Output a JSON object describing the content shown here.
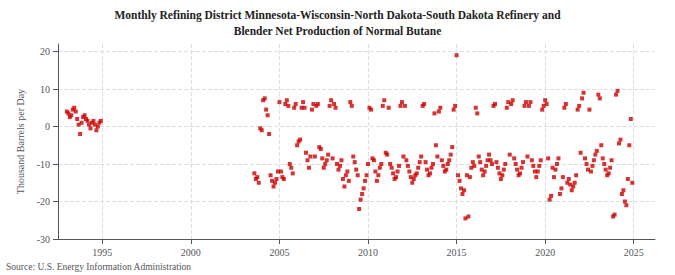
{
  "chart_data": {
    "type": "scatter",
    "title": "Monthly Refining District Minnesota-Wisconsin-North Dakota-South Dakota Refinery and",
    "subtitle": "Blender Net Production of Normal Butane",
    "y_label": "Thousand Barrels per Day",
    "annotations": [
      "Source: U.S. Energy Information Administration"
    ],
    "color": "#cc0000",
    "marker": "square",
    "grid": true,
    "xlim": [
      1992.5,
      2026.2
    ],
    "xticks": [
      1995,
      2000,
      2005,
      2010,
      2015,
      2020,
      2025
    ],
    "ylim": [
      -30,
      22
    ],
    "yticks": [
      -30,
      -20,
      -10,
      0,
      10,
      20
    ],
    "x": [
      1993.0,
      1993.083,
      1993.167,
      1993.25,
      1993.333,
      1993.417,
      1993.5,
      1993.583,
      1993.667,
      1993.75,
      1993.833,
      1993.917,
      1994.0,
      1994.083,
      1994.167,
      1994.25,
      1994.333,
      1994.417,
      1994.5,
      1994.583,
      1994.667,
      1994.75,
      1994.833,
      1994.917,
      2003.583,
      2003.667,
      2003.75,
      2003.833,
      2003.917,
      2004.0,
      2004.083,
      2004.167,
      2004.25,
      2004.333,
      2004.417,
      2004.5,
      2004.583,
      2004.667,
      2004.75,
      2004.833,
      2004.917,
      2005.0,
      2005.083,
      2005.167,
      2005.25,
      2005.333,
      2005.417,
      2005.5,
      2005.583,
      2005.667,
      2005.75,
      2005.833,
      2005.917,
      2006.0,
      2006.083,
      2006.167,
      2006.25,
      2006.333,
      2006.417,
      2006.5,
      2006.583,
      2006.667,
      2006.75,
      2006.833,
      2006.917,
      2007.0,
      2007.083,
      2007.167,
      2007.25,
      2007.333,
      2007.417,
      2007.5,
      2007.583,
      2007.667,
      2007.75,
      2007.833,
      2007.917,
      2008.0,
      2008.083,
      2008.167,
      2008.25,
      2008.333,
      2008.417,
      2008.5,
      2008.583,
      2008.667,
      2008.75,
      2008.833,
      2008.917,
      2009.0,
      2009.083,
      2009.167,
      2009.25,
      2009.333,
      2009.417,
      2009.5,
      2009.583,
      2009.667,
      2009.75,
      2009.833,
      2009.917,
      2010.0,
      2010.083,
      2010.167,
      2010.25,
      2010.333,
      2010.417,
      2010.5,
      2010.583,
      2010.667,
      2010.75,
      2010.833,
      2010.917,
      2011.0,
      2011.083,
      2011.167,
      2011.25,
      2011.333,
      2011.417,
      2011.5,
      2011.583,
      2011.667,
      2011.75,
      2011.833,
      2011.917,
      2012.0,
      2012.083,
      2012.167,
      2012.25,
      2012.333,
      2012.417,
      2012.5,
      2012.583,
      2012.667,
      2012.75,
      2012.833,
      2012.917,
      2013.0,
      2013.083,
      2013.167,
      2013.25,
      2013.333,
      2013.417,
      2013.5,
      2013.583,
      2013.667,
      2013.75,
      2013.833,
      2013.917,
      2014.0,
      2014.083,
      2014.167,
      2014.25,
      2014.333,
      2014.417,
      2014.5,
      2014.583,
      2014.667,
      2014.75,
      2014.833,
      2014.917,
      2015.0,
      2015.083,
      2015.167,
      2015.25,
      2015.333,
      2015.417,
      2015.5,
      2015.583,
      2015.667,
      2015.75,
      2015.833,
      2015.917,
      2016.0,
      2016.083,
      2016.167,
      2016.25,
      2016.333,
      2016.417,
      2016.5,
      2016.583,
      2016.667,
      2016.75,
      2016.833,
      2016.917,
      2017.0,
      2017.083,
      2017.167,
      2017.25,
      2017.333,
      2017.417,
      2017.5,
      2017.583,
      2017.667,
      2017.75,
      2017.833,
      2017.917,
      2018.0,
      2018.083,
      2018.167,
      2018.25,
      2018.333,
      2018.417,
      2018.5,
      2018.583,
      2018.667,
      2018.75,
      2018.833,
      2018.917,
      2019.0,
      2019.083,
      2019.167,
      2019.25,
      2019.333,
      2019.417,
      2019.5,
      2019.583,
      2019.667,
      2019.75,
      2019.833,
      2019.917,
      2020.0,
      2020.083,
      2020.167,
      2020.25,
      2020.333,
      2020.417,
      2020.5,
      2020.583,
      2020.667,
      2020.75,
      2020.833,
      2020.917,
      2021.0,
      2021.083,
      2021.167,
      2021.25,
      2021.333,
      2021.417,
      2021.5,
      2021.583,
      2021.667,
      2021.75,
      2021.833,
      2021.917,
      2022.0,
      2022.083,
      2022.167,
      2022.25,
      2022.333,
      2022.417,
      2022.5,
      2022.583,
      2022.667,
      2022.75,
      2022.833,
      2022.917,
      2023.0,
      2023.083,
      2023.167,
      2023.25,
      2023.333,
      2023.417,
      2023.5,
      2023.583,
      2023.667,
      2023.75,
      2023.833,
      2023.917,
      2024.0,
      2024.083,
      2024.167,
      2024.25,
      2024.333,
      2024.417,
      2024.5,
      2024.583,
      2024.667,
      2024.75,
      2024.833,
      2024.917
    ],
    "values": [
      4.0,
      3.5,
      2.5,
      3.0,
      4.5,
      5.0,
      4.0,
      2.0,
      0.5,
      -2.0,
      1.0,
      2.5,
      3.0,
      2.0,
      1.5,
      0.5,
      -0.5,
      1.0,
      1.5,
      0.5,
      -1.0,
      0.0,
      1.0,
      1.5,
      -12.5,
      -14.0,
      -13.5,
      -15.0,
      -0.5,
      -1.0,
      7.0,
      7.5,
      4.5,
      3.0,
      -2.0,
      -13.0,
      -14.5,
      -16.0,
      -15.0,
      -14.0,
      -12.0,
      6.5,
      -12.0,
      -13.5,
      -14.0,
      6.0,
      7.0,
      5.5,
      -10.0,
      -11.0,
      -12.5,
      5.0,
      6.0,
      -5.0,
      -4.0,
      -3.5,
      5.0,
      6.5,
      5.0,
      -7.0,
      -9.0,
      -11.0,
      -8.0,
      4.5,
      6.0,
      -8.0,
      5.5,
      6.0,
      -5.5,
      -6.0,
      -8.5,
      -11.0,
      -10.0,
      -9.0,
      -7.5,
      5.5,
      7.0,
      -8.5,
      6.0,
      5.0,
      -10.0,
      -11.5,
      -10.5,
      -9.0,
      -14.0,
      -16.0,
      -13.0,
      -12.0,
      -14.5,
      6.5,
      5.5,
      -8.0,
      -9.5,
      -11.5,
      -13.0,
      -22.0,
      -19.5,
      -18.0,
      -16.5,
      -14.5,
      -13.0,
      -10.0,
      5.0,
      4.5,
      -8.5,
      -9.0,
      -12.0,
      -14.5,
      -13.0,
      -11.0,
      -10.0,
      5.5,
      7.0,
      -7.0,
      -7.5,
      5.0,
      -10.0,
      -11.0,
      -12.5,
      -14.0,
      -13.5,
      -12.0,
      -10.5,
      5.5,
      6.5,
      -8.0,
      5.5,
      -9.0,
      -10.5,
      -12.0,
      -13.5,
      -15.0,
      -14.0,
      -13.0,
      -12.5,
      -11.0,
      -9.5,
      -8.0,
      5.5,
      6.0,
      -9.5,
      -11.5,
      -13.0,
      -12.5,
      -11.0,
      -10.0,
      3.5,
      -5.0,
      -8.0,
      4.0,
      5.0,
      -9.0,
      -10.5,
      -12.0,
      -11.5,
      -10.0,
      -9.0,
      -7.5,
      -5.5,
      4.5,
      5.5,
      19.0,
      -13.0,
      -14.5,
      -16.5,
      -18.0,
      -17.0,
      -24.5,
      -13.0,
      -24.0,
      -13.5,
      -11.0,
      -9.5,
      -10.5,
      5.0,
      3.5,
      -8.0,
      -9.5,
      -11.5,
      -13.0,
      -12.0,
      -10.5,
      -9.0,
      -7.5,
      -9.0,
      -10.0,
      5.5,
      6.0,
      -9.5,
      -11.0,
      -12.5,
      -14.0,
      -13.0,
      -11.5,
      -10.0,
      5.0,
      6.5,
      -7.5,
      6.0,
      7.0,
      -8.5,
      -10.0,
      -11.5,
      -13.0,
      -12.5,
      -11.0,
      -9.5,
      5.5,
      6.5,
      -8.0,
      5.5,
      6.5,
      -9.0,
      -10.5,
      -12.0,
      -13.5,
      -12.0,
      -10.5,
      -9.0,
      4.5,
      5.5,
      7.0,
      6.0,
      -8.5,
      -19.5,
      -18.5,
      -11.0,
      -13.5,
      -11.5,
      -10.0,
      -8.5,
      -18.0,
      -16.5,
      -13.5,
      5.0,
      6.0,
      -15.0,
      -14.0,
      -15.5,
      -17.0,
      -16.0,
      -15.0,
      -13.0,
      4.5,
      5.5,
      -7.0,
      7.5,
      9.0,
      -8.5,
      -10.0,
      -11.5,
      4.5,
      -12.0,
      -10.5,
      -9.0,
      -7.5,
      -6.5,
      8.5,
      7.5,
      -5.0,
      -8.5,
      -10.0,
      -11.5,
      -13.0,
      -12.5,
      -11.0,
      -9.0,
      -24.0,
      -23.5,
      8.5,
      9.5,
      -4.5,
      -3.5,
      -18.0,
      -17.0,
      -20.0,
      -21.0,
      -14.0,
      -5.0,
      2.0,
      -15.0
    ]
  }
}
